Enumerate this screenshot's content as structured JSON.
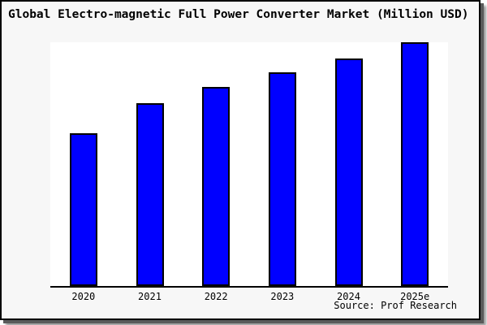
{
  "header": {
    "title": "Global Electro-magnetic Full Power Converter Market (Million USD)"
  },
  "footer": {
    "source_label": "Source: Prof Research"
  },
  "chart_data": {
    "type": "bar",
    "title": "Global Electro-magnetic Full Power Converter Market (Million USD)",
    "categories": [
      "2020",
      "2021",
      "2022",
      "2023",
      "2024",
      "2025e"
    ],
    "values": [
      62.7,
      75.0,
      81.7,
      87.7,
      93.3,
      100.0
    ],
    "value_note": "relative bar heights, percent of tallest bar; y-axis has no ticks or labels",
    "xlabel": "",
    "ylabel": "",
    "ylim": [
      0,
      100
    ],
    "grid": false,
    "legend": "none",
    "bar_color": "#0000ff",
    "bar_border_color": "#000000",
    "source": "Source: Prof Research"
  },
  "colors": {
    "canvas_background": "#f7f7f7",
    "plot_background": "#ffffff",
    "frame_border": "#000000",
    "bar_fill": "#0000ff",
    "text": "#000000"
  }
}
